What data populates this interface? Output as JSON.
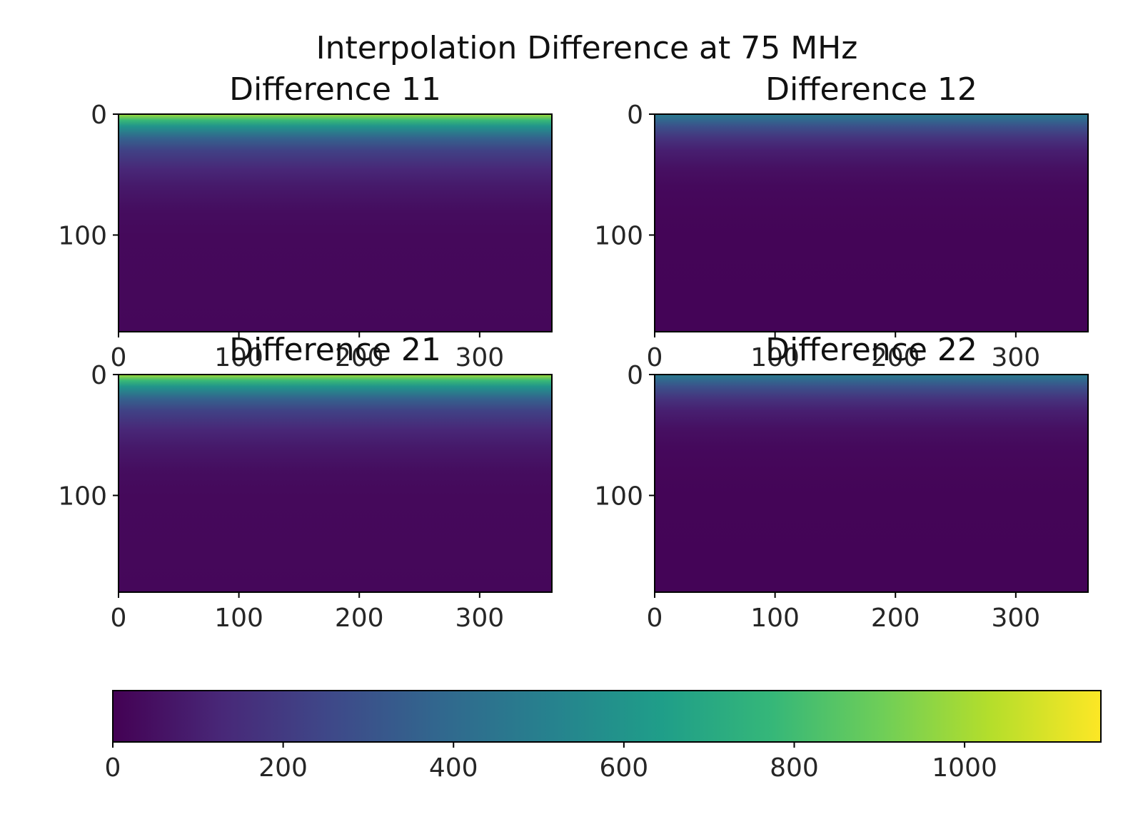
{
  "figure": {
    "suptitle": "Interpolation Difference at 75 MHz"
  },
  "chart_data": [
    {
      "type": "heatmap",
      "title": "Difference 11",
      "xlabel": "",
      "ylabel": "",
      "x_range": [
        0,
        360
      ],
      "y_range": [
        0,
        180
      ],
      "y_inverted": true,
      "x_ticks": [
        "0",
        "100",
        "200",
        "300"
      ],
      "y_ticks": [
        "0",
        "100"
      ],
      "profile_y": [
        0,
        5,
        10,
        20,
        30,
        45,
        60,
        80,
        100,
        180
      ],
      "profile_value": [
        1000,
        780,
        600,
        360,
        230,
        130,
        80,
        40,
        25,
        20
      ]
    },
    {
      "type": "heatmap",
      "title": "Difference 12",
      "xlabel": "",
      "ylabel": "",
      "x_range": [
        0,
        360
      ],
      "y_range": [
        0,
        180
      ],
      "y_inverted": true,
      "x_ticks": [
        "0",
        "100",
        "200",
        "300"
      ],
      "y_ticks": [
        "0",
        "100"
      ],
      "profile_y": [
        0,
        5,
        10,
        20,
        30,
        45,
        60,
        80,
        100,
        180
      ],
      "profile_value": [
        480,
        380,
        290,
        170,
        100,
        50,
        28,
        18,
        12,
        10
      ]
    },
    {
      "type": "heatmap",
      "title": "Difference 21",
      "xlabel": "",
      "ylabel": "",
      "x_range": [
        0,
        360
      ],
      "y_range": [
        0,
        180
      ],
      "y_inverted": true,
      "x_ticks": [
        "0",
        "100",
        "200",
        "300"
      ],
      "y_ticks": [
        "0",
        "100"
      ],
      "profile_y": [
        0,
        5,
        10,
        20,
        30,
        45,
        60,
        80,
        100,
        180
      ],
      "profile_value": [
        1000,
        780,
        600,
        360,
        230,
        130,
        80,
        40,
        25,
        20
      ]
    },
    {
      "type": "heatmap",
      "title": "Difference 22",
      "xlabel": "",
      "ylabel": "",
      "x_range": [
        0,
        360
      ],
      "y_range": [
        0,
        180
      ],
      "y_inverted": true,
      "x_ticks": [
        "0",
        "100",
        "200",
        "300"
      ],
      "y_ticks": [
        "0",
        "100"
      ],
      "profile_y": [
        0,
        5,
        10,
        20,
        30,
        45,
        60,
        80,
        100,
        180
      ],
      "profile_value": [
        480,
        380,
        290,
        170,
        100,
        50,
        28,
        18,
        12,
        10
      ]
    }
  ],
  "colorbar": {
    "colormap": "viridis",
    "range": [
      0,
      1160
    ],
    "ticks": [
      0,
      200,
      400,
      600,
      800,
      1000
    ],
    "tick_labels": [
      "0",
      "200",
      "400",
      "600",
      "800",
      "1000"
    ],
    "orientation": "horizontal",
    "colors": [
      "#440154",
      "#482878",
      "#3e4989",
      "#31688e",
      "#26828e",
      "#1f9e89",
      "#35b779",
      "#6ece58",
      "#b5de2b",
      "#fde725"
    ]
  }
}
